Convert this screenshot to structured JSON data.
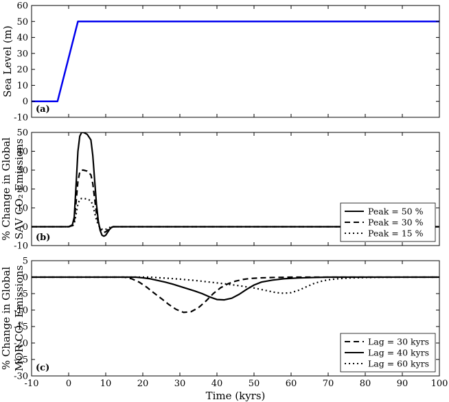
{
  "chart_data": [
    {
      "type": "line",
      "panel_label": "(a)",
      "ylabel_lines": [
        "Sea Level (m)"
      ],
      "xlim": [
        -10,
        100
      ],
      "ylim": [
        -10,
        60
      ],
      "yticks": [
        -10,
        0,
        10,
        20,
        30,
        40,
        50,
        60
      ],
      "xticks": [
        -10,
        0,
        10,
        20,
        30,
        40,
        50,
        60,
        70,
        80,
        90,
        100
      ],
      "show_xtick_labels": false,
      "grid": false,
      "legend": null,
      "series": [
        {
          "color": "#0000ee",
          "dash": "solid",
          "width": 2.5,
          "x": [
            -10,
            -3,
            2.5,
            100
          ],
          "y": [
            0,
            0,
            50,
            50
          ]
        }
      ]
    },
    {
      "type": "line",
      "panel_label": "(b)",
      "ylabel_lines": [
        "% Change in Global",
        "SAV CO₂ Emissions"
      ],
      "xlim": [
        -10,
        100
      ],
      "ylim": [
        -10,
        50
      ],
      "yticks": [
        -10,
        0,
        10,
        20,
        30,
        40,
        50
      ],
      "xticks": [
        -10,
        0,
        10,
        20,
        30,
        40,
        50,
        60,
        70,
        80,
        90,
        100
      ],
      "show_xtick_labels": false,
      "grid": false,
      "legend": "bottom-right",
      "series": [
        {
          "name": "Peak = 50 %",
          "color": "#000000",
          "dash": "solid",
          "width": 2.2,
          "x": [
            -10,
            0,
            1,
            1.5,
            2,
            2.5,
            3,
            3.5,
            4,
            5,
            6,
            6.5,
            7,
            7.5,
            8,
            8.5,
            9,
            9.5,
            10,
            10.5,
            11,
            11.5,
            12,
            100
          ],
          "y": [
            0,
            0,
            1,
            5,
            22,
            40,
            48,
            50,
            50,
            49,
            46,
            38,
            25,
            12,
            3,
            -2,
            -4.5,
            -5,
            -4.5,
            -3,
            -1.5,
            -0.5,
            0,
            0
          ]
        },
        {
          "name": "Peak = 30 %",
          "color": "#000000",
          "dash": "8,5",
          "width": 2.2,
          "x": [
            -10,
            0,
            1,
            1.5,
            2,
            2.5,
            3,
            3.5,
            4,
            5,
            6,
            6.5,
            7,
            7.5,
            8,
            8.5,
            9,
            9.5,
            10,
            10.5,
            11,
            11.5,
            12,
            100
          ],
          "y": [
            0,
            0,
            0.6,
            3,
            13,
            24,
            29,
            30,
            30,
            29.5,
            27.5,
            23,
            15,
            7,
            2,
            -1.2,
            -2.7,
            -3,
            -2.7,
            -1.8,
            -0.9,
            -0.3,
            0,
            0
          ]
        },
        {
          "name": "Peak = 15 %",
          "color": "#000000",
          "dash": "2,4",
          "width": 2.2,
          "x": [
            -10,
            0,
            1,
            1.5,
            2,
            2.5,
            3,
            3.5,
            4,
            5,
            6,
            6.5,
            7,
            7.5,
            8,
            8.5,
            9,
            9.5,
            10,
            10.5,
            11,
            11.5,
            12,
            100
          ],
          "y": [
            0,
            0,
            0.3,
            1.5,
            6.5,
            12,
            14.5,
            15,
            15,
            14.7,
            13.8,
            11.5,
            7.5,
            3.5,
            1,
            -0.6,
            -1.35,
            -1.5,
            -1.35,
            -0.9,
            -0.45,
            -0.15,
            0,
            0
          ]
        }
      ]
    },
    {
      "type": "line",
      "panel_label": "(c)",
      "ylabel_lines": [
        "% Change in Global",
        "MOR CO₂ Emissions"
      ],
      "xlabel": "Time (kyrs)",
      "xlim": [
        -10,
        100
      ],
      "ylim": [
        -30,
        5
      ],
      "yticks": [
        -30,
        -25,
        -20,
        -15,
        -10,
        -5,
        0,
        5
      ],
      "xticks": [
        -10,
        0,
        10,
        20,
        30,
        40,
        50,
        60,
        70,
        80,
        90,
        100
      ],
      "show_xtick_labels": true,
      "grid": false,
      "legend": "bottom-right",
      "series": [
        {
          "name": "Lag = 30 kyrs",
          "color": "#000000",
          "dash": "8,5",
          "width": 2.2,
          "x": [
            -10,
            15,
            17,
            19,
            21,
            23,
            25,
            27,
            29,
            31,
            33,
            35,
            37,
            39,
            41,
            43,
            45,
            47,
            49,
            52,
            55,
            60,
            100
          ],
          "y": [
            0,
            0,
            -0.5,
            -1.5,
            -3,
            -4.8,
            -6.5,
            -8.3,
            -9.8,
            -10.7,
            -10.5,
            -9.3,
            -7.3,
            -5,
            -3.2,
            -2,
            -1.2,
            -0.7,
            -0.4,
            -0.2,
            -0.1,
            0,
            0
          ]
        },
        {
          "name": "Lag = 40 kyrs",
          "color": "#000000",
          "dash": "solid",
          "width": 2.2,
          "x": [
            -10,
            18,
            20,
            22,
            24,
            26,
            28,
            30,
            32,
            34,
            36,
            38,
            40,
            42,
            44,
            46,
            48,
            50,
            52,
            55,
            58,
            62,
            66,
            70,
            100
          ],
          "y": [
            0,
            0,
            -0.2,
            -0.5,
            -1,
            -1.5,
            -2.1,
            -2.8,
            -3.5,
            -4.2,
            -5,
            -6,
            -6.8,
            -6.9,
            -6.4,
            -5.2,
            -3.7,
            -2.4,
            -1.5,
            -0.9,
            -0.5,
            -0.25,
            -0.1,
            0,
            0
          ]
        },
        {
          "name": "Lag = 60 kyrs",
          "color": "#000000",
          "dash": "2,4",
          "width": 2.2,
          "x": [
            -10,
            22,
            26,
            30,
            34,
            38,
            42,
            46,
            50,
            53,
            56,
            58,
            60,
            62,
            64,
            66,
            68,
            70,
            73,
            76,
            80,
            85,
            90,
            100
          ],
          "y": [
            0,
            0,
            -0.3,
            -0.6,
            -1,
            -1.5,
            -2,
            -2.6,
            -3.3,
            -4,
            -4.7,
            -4.9,
            -4.7,
            -4,
            -3,
            -2,
            -1.3,
            -0.8,
            -0.45,
            -0.25,
            -0.12,
            -0.05,
            0,
            0
          ]
        }
      ]
    }
  ]
}
